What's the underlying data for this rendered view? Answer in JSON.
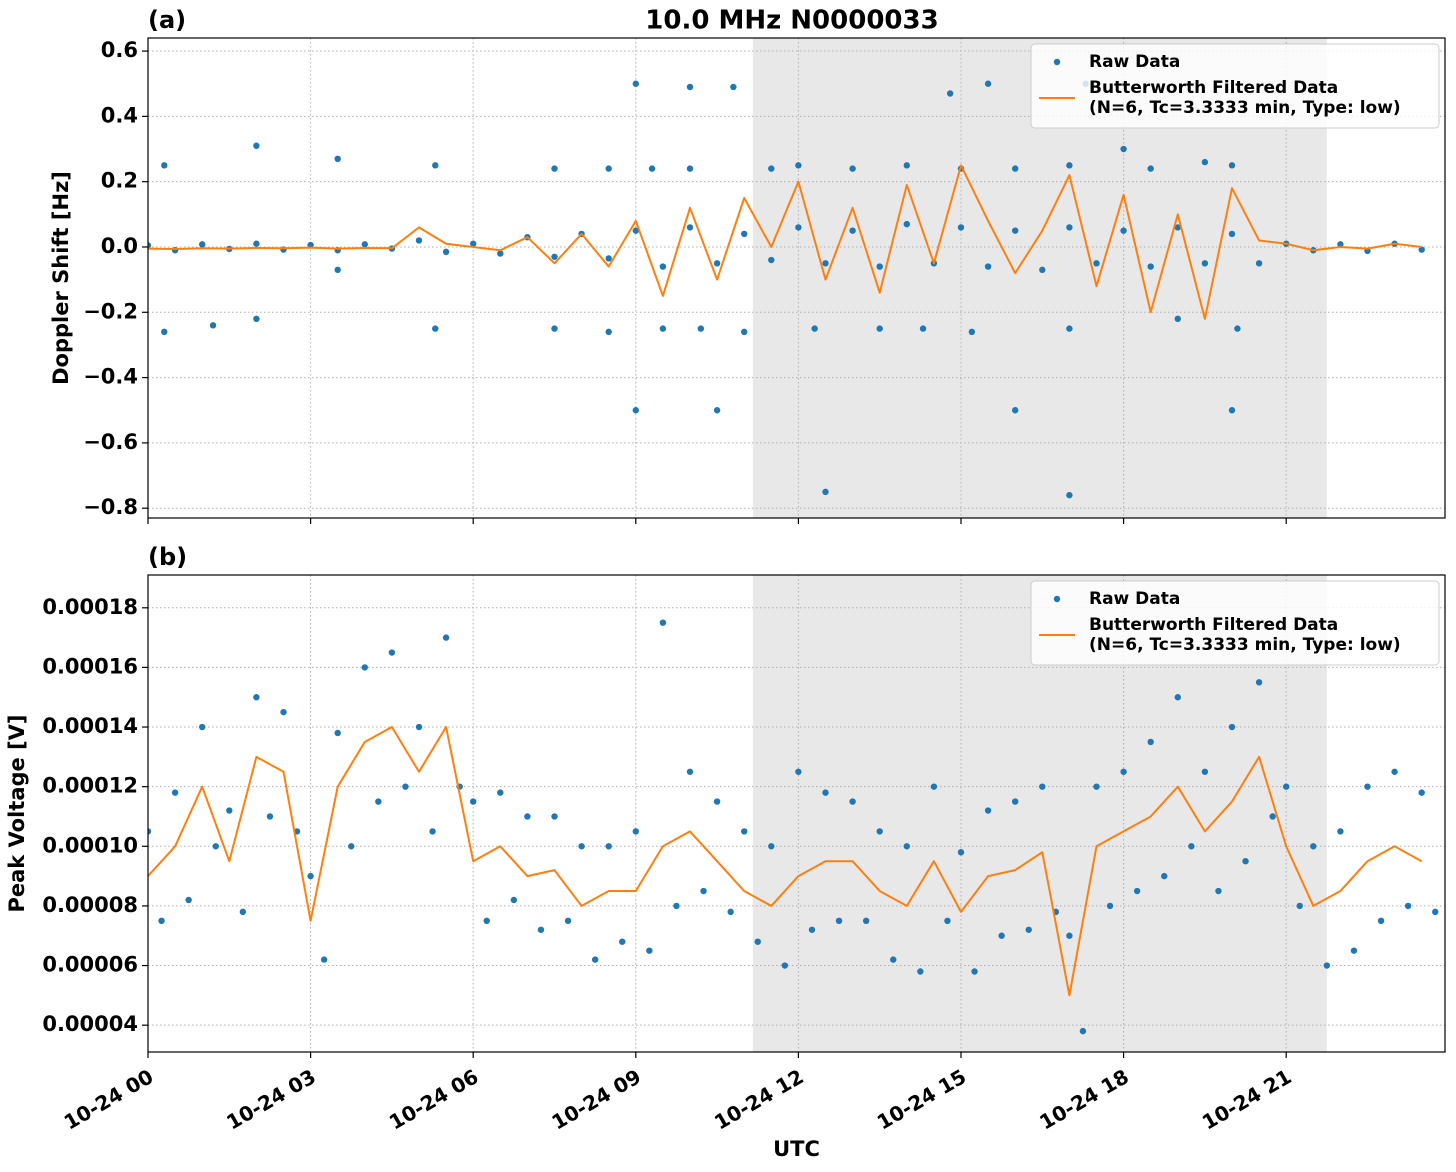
{
  "chart_data": [
    {
      "type": "line",
      "title": "10.0 MHz N0000033",
      "panel_label": "(a)",
      "ylabel": "Doppler Shift [Hz]",
      "xlim": [
        0,
        23.93
      ],
      "ylim": [
        -0.83,
        0.64
      ],
      "xticks": [
        0,
        3,
        6,
        9,
        12,
        15,
        18,
        21
      ],
      "yticks": [
        {
          "value": 0.6,
          "label": "0.6"
        },
        {
          "value": 0.4,
          "label": "0.4"
        },
        {
          "value": 0.2,
          "label": "0.2"
        },
        {
          "value": 0,
          "label": "0.0"
        },
        {
          "value": -0.2,
          "label": "−0.2"
        },
        {
          "value": -0.4,
          "label": "−0.4"
        },
        {
          "value": -0.6,
          "label": "−0.6"
        },
        {
          "value": -0.8,
          "label": "−0.8"
        }
      ],
      "grid": true,
      "legend": "upper right",
      "shaded_span": [
        11.16,
        21.75
      ],
      "series": [
        {
          "name": "Raw Data",
          "type": "scatter",
          "color": "#1f77b4",
          "x": [
            0,
            0.5,
            1,
            1.5,
            2,
            2.5,
            3,
            3.5,
            4,
            4.5,
            5,
            5.5,
            6,
            6.5,
            7,
            7.5,
            8,
            8.5,
            9,
            9.5,
            10,
            10.5,
            11,
            11.5,
            12,
            12.5,
            13,
            13.5,
            14,
            14.5,
            15,
            15.5,
            16,
            16.5,
            17,
            17.5,
            18,
            18.5,
            19,
            19.5,
            20,
            20.5,
            21,
            21.5,
            22,
            22.5,
            23,
            23.5,
            0.3,
            0.3,
            1.2,
            2,
            2,
            3.5,
            3.5,
            5.3,
            5.3,
            7.5,
            7.5,
            8.5,
            8.5,
            9,
            9,
            9.3,
            9.5,
            10,
            10,
            10.2,
            10.5,
            10.8,
            11,
            11.5,
            12,
            12.3,
            12.5,
            13,
            13.5,
            14,
            14.3,
            14.8,
            15,
            15.2,
            15.5,
            16,
            16,
            17,
            17,
            17,
            17.3,
            18,
            18.5,
            19,
            19.5,
            20,
            20,
            20.1
          ],
          "values": [
            0.005,
            -0.01,
            0.008,
            -0.006,
            0.01,
            -0.008,
            0.006,
            -0.01,
            0.008,
            -0.005,
            0.02,
            -0.015,
            0.01,
            -0.02,
            0.03,
            -0.03,
            0.04,
            -0.035,
            0.05,
            -0.06,
            0.06,
            -0.05,
            0.04,
            -0.04,
            0.06,
            -0.05,
            0.05,
            -0.06,
            0.07,
            -0.05,
            0.06,
            -0.06,
            0.05,
            -0.07,
            0.06,
            -0.05,
            0.05,
            -0.06,
            0.06,
            -0.05,
            0.04,
            -0.05,
            0.01,
            -0.01,
            0.008,
            -0.012,
            0.01,
            -0.008,
            0.25,
            -0.26,
            -0.24,
            0.31,
            -0.22,
            0.27,
            -0.07,
            0.25,
            -0.25,
            0.24,
            -0.25,
            0.24,
            -0.26,
            0.5,
            -0.5,
            0.24,
            -0.25,
            0.49,
            0.24,
            -0.25,
            -0.5,
            0.49,
            -0.26,
            0.24,
            0.25,
            -0.25,
            -0.75,
            0.24,
            -0.25,
            0.25,
            -0.25,
            0.47,
            0.24,
            -0.26,
            0.5,
            0.24,
            -0.5,
            0.25,
            -0.25,
            -0.76,
            0.5,
            0.3,
            0.24,
            -0.22,
            0.26,
            0.25,
            -0.5,
            -0.25
          ]
        },
        {
          "name": "Butterworth Filtered Data\n(N=6, Tc=3.3333 min, Type: low)",
          "type": "line",
          "color": "#ff7f0e",
          "x": [
            0,
            0.5,
            1,
            1.5,
            2,
            2.5,
            3,
            3.5,
            4,
            4.5,
            5,
            5.5,
            6,
            6.5,
            7,
            7.5,
            8,
            8.5,
            9,
            9.5,
            10,
            10.5,
            11,
            11.5,
            12,
            12.5,
            13,
            13.5,
            14,
            14.5,
            15,
            15.5,
            16,
            16.5,
            17,
            17.5,
            18,
            18.5,
            19,
            19.5,
            20,
            20.5,
            21,
            21.5,
            22,
            22.5,
            23,
            23.5
          ],
          "values": [
            -0.005,
            -0.006,
            -0.004,
            -0.005,
            -0.003,
            -0.004,
            -0.002,
            -0.005,
            -0.003,
            -0.004,
            0.06,
            0.01,
            0.0,
            -0.01,
            0.03,
            -0.05,
            0.04,
            -0.06,
            0.08,
            -0.15,
            0.12,
            -0.1,
            0.15,
            0.0,
            0.2,
            -0.1,
            0.12,
            -0.14,
            0.19,
            -0.05,
            0.25,
            0.08,
            -0.08,
            0.05,
            0.22,
            -0.12,
            0.16,
            -0.2,
            0.1,
            -0.22,
            0.18,
            0.02,
            0.01,
            -0.01,
            0.0,
            -0.005,
            0.01,
            0.0
          ]
        }
      ]
    },
    {
      "type": "line",
      "panel_label": "(b)",
      "ylabel": "Peak Voltage [V]",
      "xlabel": "UTC",
      "xlim": [
        0,
        23.93
      ],
      "ylim": [
        3.1e-05,
        0.000191
      ],
      "xticks": [
        {
          "value": 0,
          "label": "10-24 00"
        },
        {
          "value": 3,
          "label": "10-24 03"
        },
        {
          "value": 6,
          "label": "10-24 06"
        },
        {
          "value": 9,
          "label": "10-24 09"
        },
        {
          "value": 12,
          "label": "10-24 12"
        },
        {
          "value": 15,
          "label": "10-24 15"
        },
        {
          "value": 18,
          "label": "10-24 18"
        },
        {
          "value": 21,
          "label": "10-24 21"
        }
      ],
      "yticks": [
        4e-05,
        6e-05,
        8e-05,
        {
          "value": 0.0001,
          "label": "0.00010"
        },
        0.00012,
        0.00014,
        0.00016,
        0.00018
      ],
      "grid": true,
      "legend": "upper right",
      "shaded_span": [
        11.16,
        21.75
      ],
      "series": [
        {
          "name": "Raw Data",
          "type": "scatter",
          "color": "#1f77b4",
          "x": [
            0,
            0.25,
            0.5,
            0.75,
            1,
            1.25,
            1.5,
            1.75,
            2,
            2.25,
            2.5,
            2.75,
            3,
            3.25,
            3.5,
            3.75,
            4,
            4.25,
            4.5,
            4.75,
            5,
            5.25,
            5.5,
            5.75,
            6,
            6.25,
            6.5,
            6.75,
            7,
            7.25,
            7.5,
            7.75,
            8,
            8.25,
            8.5,
            8.75,
            9,
            9.25,
            9.5,
            9.75,
            10,
            10.25,
            10.5,
            10.75,
            11,
            11.25,
            11.5,
            11.75,
            12,
            12.25,
            12.5,
            12.75,
            13,
            13.25,
            13.5,
            13.75,
            14,
            14.25,
            14.5,
            14.75,
            15,
            15.25,
            15.5,
            15.75,
            16,
            16.25,
            16.5,
            16.75,
            17,
            17.25,
            17.5,
            17.75,
            18,
            18.25,
            18.5,
            18.75,
            19,
            19.25,
            19.5,
            19.75,
            20,
            20.25,
            20.5,
            20.75,
            21,
            21.25,
            21.5,
            21.75,
            22,
            22.25,
            22.5,
            22.75,
            23,
            23.25,
            23.5,
            23.75
          ],
          "values": [
            0.000105,
            7.5e-05,
            0.000118,
            8.2e-05,
            0.00014,
            0.0001,
            0.000112,
            7.8e-05,
            0.00015,
            0.00011,
            0.000145,
            0.000105,
            9e-05,
            6.2e-05,
            0.000138,
            0.0001,
            0.00016,
            0.000115,
            0.000165,
            0.00012,
            0.00014,
            0.000105,
            0.00017,
            0.00012,
            0.000115,
            7.5e-05,
            0.000118,
            8.2e-05,
            0.00011,
            7.2e-05,
            0.00011,
            7.5e-05,
            0.0001,
            6.2e-05,
            0.0001,
            6.8e-05,
            0.000105,
            6.5e-05,
            0.000175,
            8e-05,
            0.000125,
            8.5e-05,
            0.000115,
            7.8e-05,
            0.000105,
            6.8e-05,
            0.0001,
            6e-05,
            0.000125,
            7.2e-05,
            0.000118,
            7.5e-05,
            0.000115,
            7.5e-05,
            0.000105,
            6.2e-05,
            0.0001,
            5.8e-05,
            0.00012,
            7.5e-05,
            9.8e-05,
            5.8e-05,
            0.000112,
            7e-05,
            0.000115,
            7.2e-05,
            0.00012,
            7.8e-05,
            7e-05,
            3.8e-05,
            0.00012,
            8e-05,
            0.000125,
            8.5e-05,
            0.000135,
            9e-05,
            0.00015,
            0.0001,
            0.000125,
            8.5e-05,
            0.00014,
            9.5e-05,
            0.000155,
            0.00011,
            0.00012,
            8e-05,
            0.0001,
            6e-05,
            0.000105,
            6.5e-05,
            0.00012,
            7.5e-05,
            0.000125,
            8e-05,
            0.000118,
            7.8e-05
          ]
        },
        {
          "name": "Butterworth Filtered Data\n(N=6, Tc=3.3333 min, Type: low)",
          "type": "line",
          "color": "#ff7f0e",
          "x": [
            0,
            0.5,
            1,
            1.5,
            2,
            2.5,
            3,
            3.5,
            4,
            4.5,
            5,
            5.5,
            6,
            6.5,
            7,
            7.5,
            8,
            8.5,
            9,
            9.5,
            10,
            10.5,
            11,
            11.5,
            12,
            12.5,
            13,
            13.5,
            14,
            14.5,
            15,
            15.5,
            16,
            16.5,
            17,
            17.5,
            18,
            18.5,
            19,
            19.5,
            20,
            20.5,
            21,
            21.5,
            22,
            22.5,
            23,
            23.5
          ],
          "values": [
            9e-05,
            0.0001,
            0.00012,
            9.5e-05,
            0.00013,
            0.000125,
            7.5e-05,
            0.00012,
            0.000135,
            0.00014,
            0.000125,
            0.00014,
            9.5e-05,
            0.0001,
            9e-05,
            9.2e-05,
            8e-05,
            8.5e-05,
            8.5e-05,
            0.0001,
            0.000105,
            9.5e-05,
            8.5e-05,
            8e-05,
            9e-05,
            9.5e-05,
            9.5e-05,
            8.5e-05,
            8e-05,
            9.5e-05,
            7.8e-05,
            9e-05,
            9.2e-05,
            9.8e-05,
            5e-05,
            0.0001,
            0.000105,
            0.00011,
            0.00012,
            0.000105,
            0.000115,
            0.00013,
            0.0001,
            8e-05,
            8.5e-05,
            9.5e-05,
            0.0001,
            9.5e-05
          ]
        }
      ]
    }
  ]
}
